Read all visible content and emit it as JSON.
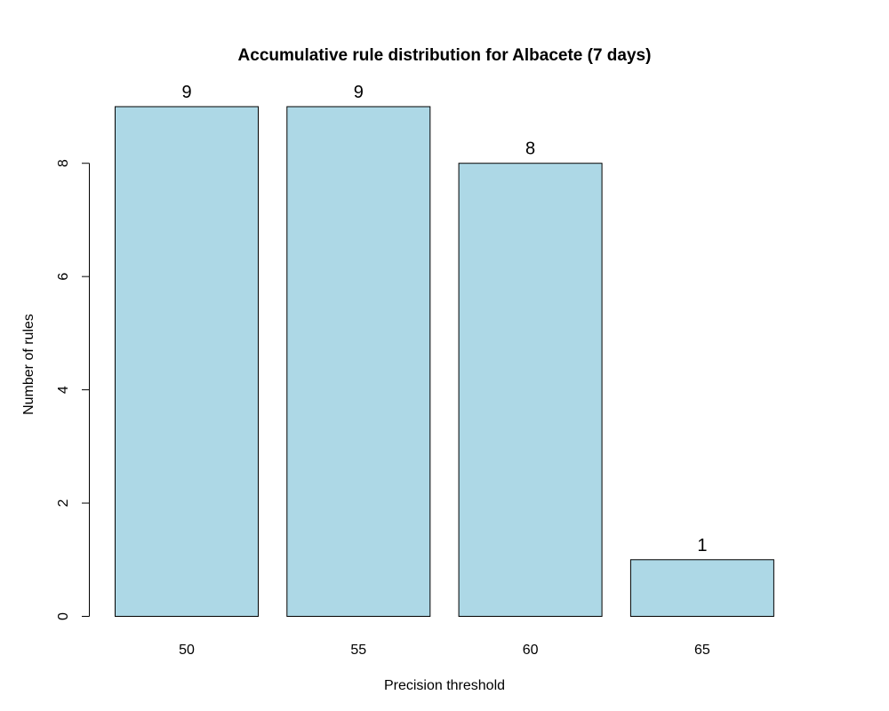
{
  "chart_data": {
    "type": "bar",
    "title": "Accumulative rule distribution for Albacete (7 days)",
    "xlabel": "Precision threshold",
    "ylabel": "Number of rules",
    "categories": [
      "50",
      "55",
      "60",
      "65"
    ],
    "values": [
      9,
      9,
      8,
      1
    ],
    "data_labels": [
      "9",
      "9",
      "8",
      "1"
    ],
    "y_ticks": [
      "0",
      "2",
      "4",
      "6",
      "8"
    ],
    "ylim": [
      0,
      9
    ],
    "grid": false,
    "legend": "none",
    "colors": {
      "bar_fill": "#add8e6",
      "bar_stroke": "#000000"
    }
  }
}
